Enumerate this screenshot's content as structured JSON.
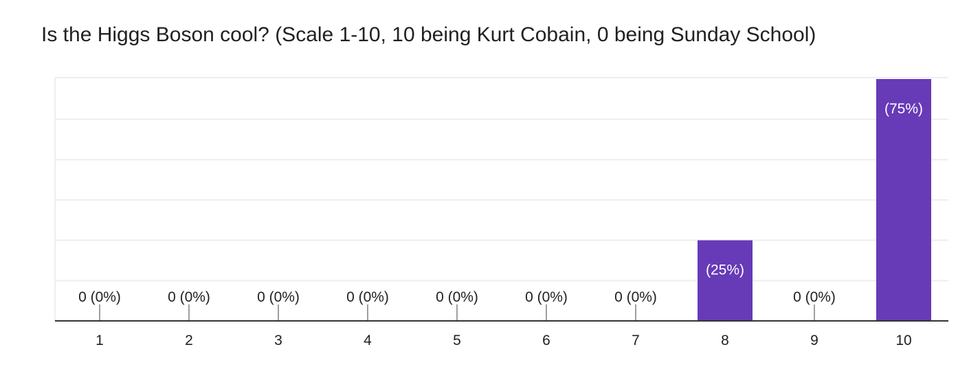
{
  "title": "Is the Higgs Boson cool? (Scale 1-10, 10 being Kurt Cobain, 0 being Sunday School)",
  "chart_data": {
    "type": "bar",
    "title": "Is the Higgs Boson cool? (Scale 1-10, 10 being Kurt Cobain, 0 being Sunday School)",
    "categories": [
      "1",
      "2",
      "3",
      "4",
      "5",
      "6",
      "7",
      "8",
      "9",
      "10"
    ],
    "values": [
      0,
      0,
      0,
      0,
      0,
      0,
      0,
      1,
      0,
      3
    ],
    "data_labels": [
      "0 (0%)",
      "0 (0%)",
      "0 (0%)",
      "0 (0%)",
      "0 (0%)",
      "0 (0%)",
      "0 (0%)",
      "(25%)",
      "0 (0%)",
      "(75%)"
    ],
    "ylim": [
      0,
      3
    ],
    "grid": true,
    "bar_color": "#673ab7",
    "zero_tick_color": "#9e9e9e",
    "gridline_color": "#eeeeee",
    "axis_color": "#333333",
    "label_color_outside": "#212121",
    "label_color_inside": "#ffffff"
  }
}
